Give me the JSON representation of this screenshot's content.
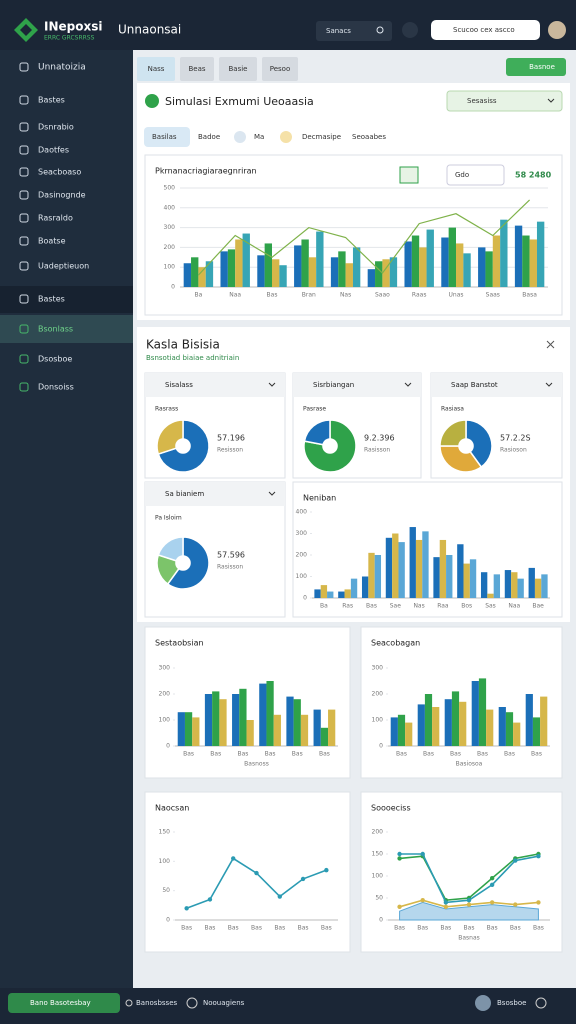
{
  "header": {
    "brand": "INepoxsi",
    "brand_sub": "ERRC GRCSRRSS",
    "title": "Unnaonsai",
    "search": "Sanacs",
    "account": "Scucoo cex ascco"
  },
  "sidebar": {
    "items": [
      "Unnatoizia",
      "Bastes",
      "Dsnrabio",
      "Daotfes",
      "Seacboaso",
      "Dasinognde",
      "Rasraldo",
      "Boatse",
      "Uadeptieuon",
      "Bastes",
      "Bsonlass",
      "Dsosboe",
      "Donsoiss"
    ]
  },
  "tabs": [
    "Nass",
    "Beas",
    "Basie",
    "Pesoo"
  ],
  "action": "Basnoe",
  "panel": {
    "title": "Simulasi Exmumi Ueoaasia",
    "select": "Sesasiss",
    "chips": [
      "Basilas",
      "Badoe",
      "Ma",
      "Decmasipe",
      "Seoaabes"
    ]
  },
  "section": {
    "title": "Kasla Bisisia",
    "subtitle": "Bsnsotiad biaiae adnitriain"
  },
  "footer": {
    "status": "Bano Basotesbay",
    "items": [
      "Banosbsses",
      "Noouagiens"
    ],
    "user": "Bsosboe"
  },
  "chart_data": [
    {
      "type": "bar",
      "title": "Pkrnanacriagiaraegnriran",
      "filter": "Gdo",
      "stat": "58 2480",
      "categories": [
        "Ba",
        "Naa",
        "Bas",
        "Bran",
        "Nas",
        "Saao",
        "Raas",
        "Unas",
        "Saas",
        "Basa"
      ],
      "series": [
        {
          "color": "#1b6fb8",
          "values": [
            120,
            180,
            160,
            210,
            150,
            90,
            230,
            250,
            200,
            310
          ]
        },
        {
          "color": "#2fa24a",
          "values": [
            150,
            190,
            220,
            240,
            180,
            130,
            260,
            300,
            180,
            260
          ]
        },
        {
          "color": "#d6b74a",
          "values": [
            100,
            240,
            140,
            150,
            120,
            140,
            200,
            220,
            260,
            240
          ]
        },
        {
          "color": "#37a5b5",
          "values": [
            130,
            270,
            110,
            280,
            200,
            150,
            290,
            170,
            340,
            330
          ]
        },
        {
          "color": "#7fb24a",
          "style": "line",
          "values": [
            60,
            260,
            150,
            300,
            250,
            70,
            320,
            370,
            260,
            440
          ]
        }
      ],
      "ylim": [
        0,
        500
      ],
      "yticks": [
        0,
        100,
        200,
        300,
        400,
        500
      ],
      "grid": true
    },
    {
      "type": "pie",
      "title": "Sisalass",
      "subtitle": "Rasrass",
      "stat": "57.196",
      "stat_sub": "Resisson",
      "values": [
        70,
        30
      ],
      "colors": [
        "#1b6fb8",
        "#d6b74a"
      ]
    },
    {
      "type": "pie",
      "title": "Sisrbiangan",
      "subtitle": "Pasrase",
      "stat": "9.2.396",
      "stat_sub": "Rasisson",
      "values": [
        78,
        22
      ],
      "colors": [
        "#2fa24a",
        "#1b6fb8"
      ]
    },
    {
      "type": "pie",
      "title": "Saap Banstot",
      "subtitle": "Rasiasa",
      "stat": "57.2.2S",
      "stat_sub": "Rasioson",
      "values": [
        40,
        35,
        25
      ],
      "colors": [
        "#1b6fb8",
        "#e0a93a",
        "#b8b040"
      ]
    },
    {
      "type": "pie",
      "title": "Sa bianiem",
      "subtitle": "Pa Isloim",
      "stat": "57.596",
      "stat_sub": "Rasisson",
      "values": [
        60,
        20,
        20
      ],
      "colors": [
        "#1b6fb8",
        "#7cc46a",
        "#a9d2ee"
      ]
    },
    {
      "type": "bar",
      "title": "Neniban",
      "categories": [
        "Ba",
        "Ras",
        "Bas",
        "Sae",
        "Nas",
        "Raa",
        "Bos",
        "Sas",
        "Naa",
        "Bae"
      ],
      "series": [
        {
          "color": "#1b6fb8",
          "values": [
            40,
            30,
            100,
            280,
            330,
            190,
            250,
            120,
            130,
            140
          ]
        },
        {
          "color": "#d6b74a",
          "values": [
            60,
            40,
            210,
            300,
            270,
            270,
            160,
            20,
            120,
            90
          ]
        },
        {
          "color": "#5aa7d6",
          "values": [
            30,
            90,
            200,
            260,
            310,
            200,
            180,
            110,
            90,
            110
          ]
        }
      ],
      "ylim": [
        0,
        400
      ],
      "yticks": [
        0,
        100,
        200,
        300,
        400
      ],
      "grid": false
    },
    {
      "type": "bar",
      "title": "Sestaobsian",
      "xlabel": "Basnoss",
      "categories": [
        "Bas",
        "Bas",
        "Bas",
        "Bas",
        "Bas",
        "Bas"
      ],
      "series": [
        {
          "color": "#1b6fb8",
          "values": [
            130,
            200,
            200,
            240,
            190,
            140
          ]
        },
        {
          "color": "#2fa24a",
          "values": [
            130,
            210,
            220,
            250,
            180,
            70
          ]
        },
        {
          "color": "#d6b74a",
          "values": [
            110,
            180,
            100,
            120,
            120,
            140
          ]
        }
      ],
      "ylim": [
        0,
        300
      ],
      "yticks": [
        0,
        100,
        200,
        300
      ],
      "grid": false
    },
    {
      "type": "bar",
      "title": "Seacobagan",
      "xlabel": "Basiosoa",
      "categories": [
        "Bas",
        "Bas",
        "Bas",
        "Bas",
        "Bas",
        "Bas"
      ],
      "series": [
        {
          "color": "#1b6fb8",
          "values": [
            110,
            160,
            180,
            250,
            150,
            200
          ]
        },
        {
          "color": "#2fa24a",
          "values": [
            120,
            200,
            210,
            260,
            130,
            110
          ]
        },
        {
          "color": "#d6b74a",
          "values": [
            90,
            150,
            170,
            140,
            90,
            190
          ]
        }
      ],
      "ylim": [
        0,
        300
      ],
      "yticks": [
        0,
        100,
        200,
        300
      ],
      "grid": false
    },
    {
      "type": "line",
      "title": "Naocsan",
      "categories": [
        "Bas",
        "Bas",
        "Bas",
        "Bas",
        "Bas",
        "Bas",
        "Bas"
      ],
      "series": [
        {
          "color": "#2b9bb3",
          "values": [
            20,
            35,
            105,
            80,
            40,
            70,
            85
          ]
        }
      ],
      "ylim": [
        0,
        150
      ],
      "yticks": [
        0,
        50,
        100,
        150
      ],
      "grid": false
    },
    {
      "type": "line",
      "title": "Soooeciss",
      "xlabel": "Basnas",
      "categories": [
        "Bas",
        "Bas",
        "Bas",
        "Bas",
        "Bas",
        "Bas",
        "Bas"
      ],
      "series": [
        {
          "color": "#5aa7d6",
          "area": true,
          "values": [
            20,
            40,
            25,
            30,
            35,
            30,
            25
          ]
        },
        {
          "color": "#2fa24a",
          "values": [
            140,
            145,
            45,
            50,
            95,
            140,
            150
          ]
        },
        {
          "color": "#d6b74a",
          "values": [
            30,
            45,
            30,
            35,
            40,
            35,
            40
          ]
        },
        {
          "color": "#2b9bb3",
          "values": [
            150,
            150,
            40,
            45,
            80,
            135,
            145
          ]
        }
      ],
      "ylim": [
        0,
        200
      ],
      "yticks": [
        0,
        50,
        100,
        150,
        200
      ],
      "grid": false
    }
  ]
}
